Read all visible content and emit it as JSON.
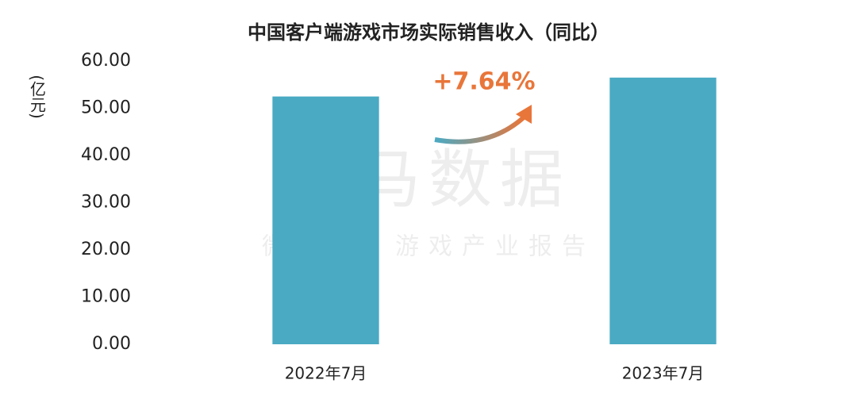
{
  "chart_data": {
    "type": "bar",
    "title": "中国客户端游戏市场实际销售收入（同比）",
    "y_label": "(亿元)",
    "categories": [
      "2022年7月",
      "2023年7月"
    ],
    "values": [
      52.5,
      56.5
    ],
    "color": "#4aaac4",
    "ylim": [
      0,
      60
    ],
    "yticks": [
      {
        "value": 0,
        "label": "0.00"
      },
      {
        "value": 10,
        "label": "10.00"
      },
      {
        "value": 20,
        "label": "20.00"
      },
      {
        "value": 30,
        "label": "30.00"
      },
      {
        "value": 40,
        "label": "40.00"
      },
      {
        "value": 50,
        "label": "50.00"
      },
      {
        "value": 60,
        "label": "60.00"
      }
    ],
    "grid": false,
    "annotation": "+7.64%",
    "annotation_color": "#e8763a",
    "watermark": "伽马数据",
    "watermark_subtitle": "微信号：游戏产业报告"
  }
}
